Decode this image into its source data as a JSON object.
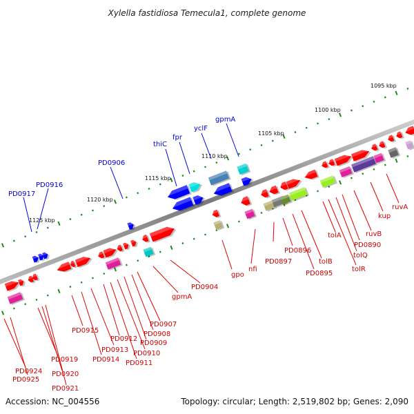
{
  "title": "Xylella fastidiosa Temecula1, complete genome",
  "footer": {
    "accession": "Accession: NC_004556",
    "summary": "Topology: circular; Length: 2,519,802 bp; Genes: 2,090"
  },
  "scale_labels": [
    "1095 kbp",
    "1100 kbp",
    "1105 kbp",
    "1110 kbp",
    "1115 kbp",
    "1120 kbp",
    "1125 kbp"
  ],
  "outer_labels": [
    "PD0917",
    "PD0916",
    "PD0906",
    "thiC",
    "fpr",
    "yclF",
    "gpmA"
  ],
  "inner_labels": [
    "PD0924",
    "PD0925",
    "PD0919",
    "PD0920",
    "PD0921",
    "PD0915",
    "PD0914",
    "PD0913",
    "PD0912",
    "PD0911",
    "PD0910",
    "PD0909",
    "PD0908",
    "PD0907",
    "gpmA",
    "PD0904",
    "gpo",
    "nfi",
    "PD0897",
    "PD0896",
    "PD0895",
    "tolB",
    "tolA",
    "tolR",
    "tolQ",
    "PD0890",
    "ruvB",
    "kup",
    "ruvA"
  ],
  "colors": {
    "backbone": "#8a8a8a",
    "forward_gene": "#ff0000",
    "reverse_gene": "#0000ff",
    "label_red": "#cc0000",
    "label_blue": "#0000cc",
    "tick": "#1a8a1a"
  }
}
